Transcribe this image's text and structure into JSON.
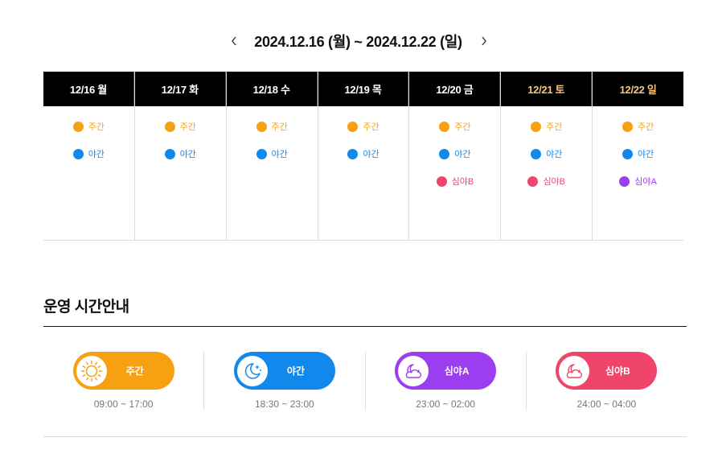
{
  "week_nav": {
    "prev_icon": "chevron-left-icon",
    "range": "2024.12.16 (월) ~ 2024.12.22 (일)",
    "next_icon": "chevron-right-icon"
  },
  "colors": {
    "day": "#f7a012",
    "night": "#1189ec",
    "lateA": "#9a3ef0",
    "lateB": "#f0456a",
    "weekend_head": "#f7c47a"
  },
  "days": [
    {
      "label": "12/16 월",
      "weekend": false,
      "shifts": [
        {
          "label": "주간",
          "type": "day"
        },
        {
          "label": "야간",
          "type": "night"
        }
      ]
    },
    {
      "label": "12/17 화",
      "weekend": false,
      "shifts": [
        {
          "label": "주간",
          "type": "day"
        },
        {
          "label": "야간",
          "type": "night"
        }
      ]
    },
    {
      "label": "12/18 수",
      "weekend": false,
      "shifts": [
        {
          "label": "주간",
          "type": "day"
        },
        {
          "label": "야간",
          "type": "night"
        }
      ]
    },
    {
      "label": "12/19 목",
      "weekend": false,
      "shifts": [
        {
          "label": "주간",
          "type": "day"
        },
        {
          "label": "야간",
          "type": "night"
        }
      ]
    },
    {
      "label": "12/20 금",
      "weekend": false,
      "shifts": [
        {
          "label": "주간",
          "type": "day"
        },
        {
          "label": "야간",
          "type": "night"
        },
        {
          "label": "심야B",
          "type": "lateB"
        }
      ]
    },
    {
      "label": "12/21 토",
      "weekend": true,
      "shifts": [
        {
          "label": "주간",
          "type": "day"
        },
        {
          "label": "야간",
          "type": "night"
        },
        {
          "label": "심야B",
          "type": "lateB"
        }
      ]
    },
    {
      "label": "12/22 일",
      "weekend": true,
      "shifts": [
        {
          "label": "주간",
          "type": "day"
        },
        {
          "label": "야간",
          "type": "night"
        },
        {
          "label": "심야A",
          "type": "lateA"
        }
      ]
    }
  ],
  "hours_section": {
    "title": "운영 시간안내",
    "items": [
      {
        "label": "주간",
        "time": "09:00 ~ 17:00",
        "type": "day",
        "icon": "sun-icon"
      },
      {
        "label": "야간",
        "time": "18:30 ~ 23:00",
        "type": "night",
        "icon": "moon-stars-icon"
      },
      {
        "label": "심야A",
        "time": "23:00 ~ 02:00",
        "type": "lateA",
        "icon": "moon-cloud-icon"
      },
      {
        "label": "심야B",
        "time": "24:00 ~ 04:00",
        "type": "lateB",
        "icon": "moon-cloud-icon"
      }
    ]
  }
}
